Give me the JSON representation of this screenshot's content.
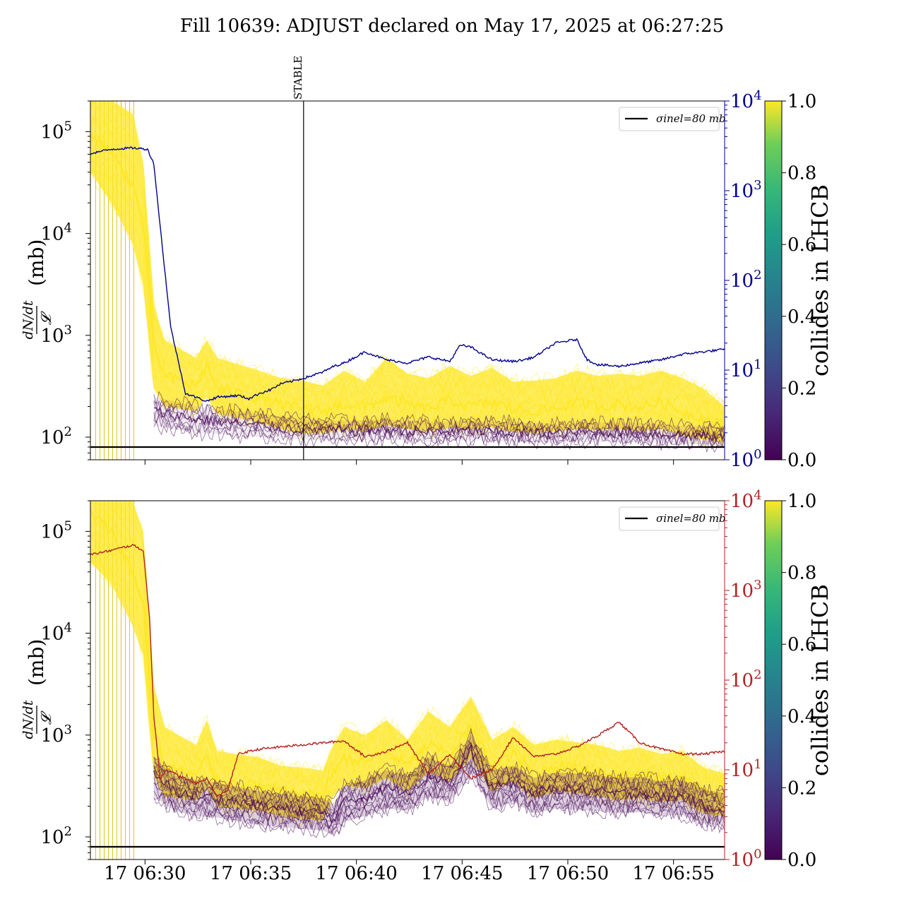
{
  "figure": {
    "title": "Fill 10639: ADJUST declared on May 17, 2025 at 06:27:25"
  },
  "colors": {
    "yellow": "#fde725",
    "purple": "#440154",
    "navy": "#00008b",
    "red": "#b22222",
    "black": "#000000"
  },
  "chart_data": [
    {
      "type": "line",
      "panel": "top",
      "title": "",
      "xlabel": "",
      "ylabel_main": "dN/dt / 𝓛 (mb)",
      "ylabel_fraction": {
        "numerator": "dN/dt",
        "denominator": "𝓛",
        "unit": "(mb)"
      },
      "yscale": "log",
      "ylim": [
        60,
        200000
      ],
      "y_ticks": [
        "10^2",
        "10^3",
        "10^4",
        "10^5"
      ],
      "xlim": [
        "06:27:25",
        "06:57:25"
      ],
      "x_ticks": [
        "17 06:30",
        "17 06:35",
        "17 06:40",
        "17 06:45",
        "17 06:50",
        "17 06:55"
      ],
      "x_ticks_labels_visible": false,
      "secondary_axis": {
        "scale": "log",
        "ylim": [
          1,
          10000
        ],
        "ticks": [
          "10^0",
          "10^1",
          "10^2",
          "10^3",
          "10^4"
        ],
        "color": "#00008b"
      },
      "vertical_marker": {
        "time": "06:37:30",
        "label": "STABLE"
      },
      "reference_line": {
        "value": 80,
        "label": "σinel=80 mb"
      },
      "legend": {
        "position": "top-right",
        "entries": [
          "σinel=80 mb"
        ]
      },
      "colorbar": {
        "label": "collides in LHCB",
        "range": [
          0.0,
          1.0
        ],
        "ticks": [
          "0.0",
          "0.2",
          "0.4",
          "0.6",
          "0.8",
          "1.0"
        ],
        "colormap": "viridis"
      },
      "series": [
        {
          "role": "per-bunch band, colliding (color 1.0)",
          "x_minutes": [
            0,
            1,
            2,
            2.5,
            3,
            3.5,
            5,
            5.5,
            6,
            8,
            9,
            10,
            11,
            12,
            13,
            14,
            15,
            16,
            17,
            18,
            19,
            20,
            21,
            22,
            23,
            24,
            25,
            26,
            27,
            28,
            29,
            30
          ],
          "median": [
            100000,
            60000,
            30000,
            12000,
            800,
            400,
            320,
            500,
            300,
            240,
            210,
            190,
            180,
            210,
            200,
            240,
            210,
            190,
            230,
            200,
            220,
            190,
            180,
            190,
            220,
            200,
            210,
            200,
            220,
            180,
            150,
            130
          ],
          "upper": [
            200000,
            200000,
            150000,
            50000,
            2000,
            900,
            600,
            900,
            600,
            450,
            380,
            360,
            320,
            450,
            350,
            600,
            420,
            380,
            500,
            400,
            480,
            350,
            360,
            380,
            450,
            400,
            420,
            400,
            450,
            380,
            300,
            200
          ],
          "lower": [
            40000,
            20000,
            8000,
            3000,
            300,
            200,
            180,
            250,
            170,
            140,
            120,
            110,
            110,
            120,
            115,
            130,
            120,
            115,
            125,
            118,
            125,
            112,
            110,
            115,
            120,
            118,
            120,
            115,
            120,
            105,
            95,
            90
          ]
        },
        {
          "role": "per-bunch band, non-colliding (color 0.0)",
          "x_minutes": [
            3,
            5,
            8,
            10,
            12,
            14,
            16,
            18,
            20,
            22,
            24,
            26,
            28,
            30
          ],
          "median": [
            180,
            150,
            130,
            120,
            115,
            118,
            112,
            115,
            110,
            108,
            112,
            110,
            105,
            100
          ],
          "upper": [
            250,
            200,
            170,
            150,
            145,
            150,
            140,
            145,
            140,
            135,
            140,
            138,
            130,
            125
          ],
          "lower": [
            130,
            110,
            100,
            95,
            92,
            95,
            90,
            93,
            90,
            88,
            90,
            89,
            86,
            84
          ]
        },
        {
          "role": "secondary-axis trace (navy)",
          "x_minutes": [
            0,
            1,
            2,
            2.7,
            3,
            3.3,
            3.8,
            4.5,
            5.5,
            6,
            7,
            7.5,
            8,
            8.5,
            9,
            10,
            11,
            11.5,
            12,
            13,
            14,
            15,
            16,
            17,
            17.5,
            18,
            19,
            20,
            20.5,
            21,
            22,
            23,
            23.5,
            24,
            25,
            26,
            27,
            28,
            29,
            30
          ],
          "values": [
            2600,
            2900,
            3000,
            2900,
            2000,
            400,
            30,
            5.5,
            4.5,
            5,
            5.2,
            4.8,
            5.5,
            6,
            7,
            8,
            9.5,
            11,
            12,
            16,
            13,
            12,
            14,
            12.5,
            19,
            18,
            13,
            12.5,
            13,
            14,
            20,
            22,
            13,
            11.5,
            11,
            12,
            13,
            15,
            16,
            17
          ]
        }
      ]
    },
    {
      "type": "line",
      "panel": "bottom",
      "title": "",
      "xlabel": "",
      "ylabel_main": "dN/dt / 𝓛 (mb)",
      "ylabel_fraction": {
        "numerator": "dN/dt",
        "denominator": "𝓛",
        "unit": "(mb)"
      },
      "yscale": "log",
      "ylim": [
        60,
        200000
      ],
      "y_ticks": [
        "10^2",
        "10^3",
        "10^4",
        "10^5"
      ],
      "xlim": [
        "06:27:25",
        "06:57:25"
      ],
      "x_ticks": [
        "17 06:30",
        "17 06:35",
        "17 06:40",
        "17 06:45",
        "17 06:50",
        "17 06:55"
      ],
      "x_ticks_labels_visible": true,
      "secondary_axis": {
        "scale": "log",
        "ylim": [
          1,
          10000
        ],
        "ticks": [
          "10^0",
          "10^1",
          "10^2",
          "10^3",
          "10^4"
        ],
        "color": "#b22222"
      },
      "reference_line": {
        "value": 80,
        "label": "σinel=80 mb"
      },
      "legend": {
        "position": "top-right",
        "entries": [
          "σinel=80 mb"
        ]
      },
      "colorbar": {
        "label": "collides in LHCB",
        "range": [
          0.0,
          1.0
        ],
        "ticks": [
          "0.0",
          "0.2",
          "0.4",
          "0.6",
          "0.8",
          "1.0"
        ],
        "colormap": "viridis"
      },
      "series": [
        {
          "role": "per-bunch band, colliding (color 1.0)",
          "x_minutes": [
            0,
            1,
            2,
            2.5,
            3,
            3.5,
            5,
            5.5,
            6,
            8,
            9,
            10,
            11,
            11.5,
            12,
            13,
            14,
            15,
            16,
            17,
            18,
            19,
            20,
            21,
            22,
            23,
            24,
            25,
            26,
            27,
            28,
            29,
            30
          ],
          "median": [
            150000,
            100000,
            40000,
            20000,
            1000,
            500,
            400,
            600,
            350,
            320,
            280,
            260,
            250,
            450,
            600,
            550,
            700,
            500,
            800,
            650,
            1200,
            500,
            650,
            420,
            500,
            480,
            450,
            400,
            430,
            380,
            400,
            280,
            250
          ],
          "upper": [
            200000,
            200000,
            200000,
            100000,
            3000,
            1200,
            800,
            1400,
            700,
            600,
            500,
            480,
            450,
            800,
            1200,
            1000,
            1400,
            900,
            1700,
            1200,
            2400,
            900,
            1200,
            800,
            900,
            850,
            800,
            700,
            750,
            650,
            700,
            480,
            420
          ],
          "lower": [
            50000,
            30000,
            12000,
            6000,
            400,
            250,
            230,
            300,
            200,
            180,
            160,
            150,
            145,
            250,
            320,
            300,
            380,
            280,
            430,
            350,
            600,
            280,
            350,
            240,
            280,
            270,
            250,
            230,
            240,
            220,
            230,
            170,
            160
          ]
        },
        {
          "role": "per-bunch band, non-colliding (color 0.0)",
          "x_minutes": [
            3,
            4,
            5,
            6,
            8,
            10,
            11,
            11.5,
            12,
            13,
            14,
            15,
            16,
            17,
            18,
            19,
            20,
            21,
            22,
            23,
            24,
            25,
            26,
            27,
            28,
            29,
            30
          ],
          "median": [
            400,
            280,
            250,
            240,
            200,
            180,
            170,
            150,
            220,
            250,
            300,
            280,
            400,
            350,
            700,
            300,
            350,
            260,
            300,
            290,
            280,
            260,
            270,
            240,
            250,
            200,
            190
          ],
          "upper": [
            600,
            400,
            360,
            340,
            280,
            250,
            240,
            210,
            320,
            360,
            450,
            400,
            600,
            500,
            1000,
            450,
            500,
            380,
            430,
            420,
            400,
            380,
            390,
            350,
            360,
            290,
            270
          ],
          "lower": [
            250,
            180,
            160,
            155,
            130,
            120,
            115,
            105,
            140,
            160,
            190,
            180,
            250,
            220,
            420,
            190,
            220,
            170,
            190,
            185,
            180,
            170,
            175,
            160,
            165,
            135,
            130
          ]
        },
        {
          "role": "secondary-axis trace (red)",
          "x_minutes": [
            0,
            1,
            2,
            2.5,
            2.8,
            3,
            3.3,
            3.6,
            4,
            5,
            5.5,
            6,
            6.5,
            7,
            7.5,
            8,
            9,
            10,
            11,
            12,
            13,
            14,
            15,
            16,
            17,
            18,
            19,
            20,
            21,
            22,
            23,
            24,
            25,
            26,
            27,
            28,
            29,
            30
          ],
          "values": [
            2500,
            2800,
            3200,
            2800,
            500,
            40,
            8,
            10,
            9,
            7,
            8,
            5,
            6,
            15,
            16,
            17,
            18,
            19,
            20,
            21,
            14,
            16,
            20,
            9,
            15,
            8,
            10,
            23,
            14,
            15,
            18,
            24,
            34,
            20,
            17,
            15,
            15,
            16
          ]
        }
      ]
    }
  ]
}
